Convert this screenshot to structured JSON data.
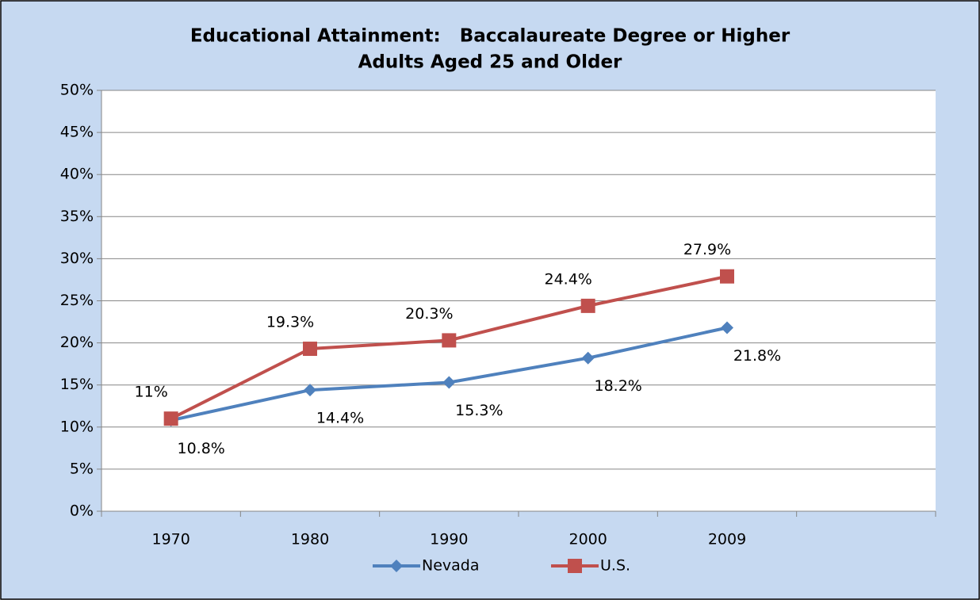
{
  "chart_data": {
    "type": "line",
    "title": "Educational Attainment:   Baccalaureate Degree or Higher",
    "subtitle": "Adults Aged 25 and Older",
    "categories": [
      "1970",
      "1980",
      "1990",
      "2000",
      "2009",
      null
    ],
    "series": [
      {
        "name": "Nevada",
        "color": "#4f81bd",
        "marker": "diamond",
        "values": [
          10.8,
          14.4,
          15.3,
          18.2,
          21.8,
          null
        ],
        "value_labels": [
          "10.8%",
          "14.4%",
          "15.3%",
          "18.2%",
          "21.8%",
          null
        ]
      },
      {
        "name": "U.S.",
        "color": "#c0504d",
        "marker": "square",
        "values": [
          11,
          19.3,
          20.3,
          24.4,
          27.9,
          null
        ],
        "value_labels": [
          "11%",
          "19.3%",
          "20.3%",
          "24.4%",
          "27.9%",
          null
        ]
      }
    ],
    "ylim": [
      0,
      50
    ],
    "yticks": [
      {
        "value": 0,
        "label": "0%"
      },
      {
        "value": 5,
        "label": "5%"
      },
      {
        "value": 10,
        "label": "10%"
      },
      {
        "value": 15,
        "label": "15%"
      },
      {
        "value": 20,
        "label": "20%"
      },
      {
        "value": 25,
        "label": "25%"
      },
      {
        "value": 30,
        "label": "30%"
      },
      {
        "value": 35,
        "label": "35%"
      },
      {
        "value": 40,
        "label": "40%"
      },
      {
        "value": 45,
        "label": "45%"
      },
      {
        "value": 50,
        "label": "50%"
      }
    ],
    "grid": true,
    "legend": "bottom"
  }
}
